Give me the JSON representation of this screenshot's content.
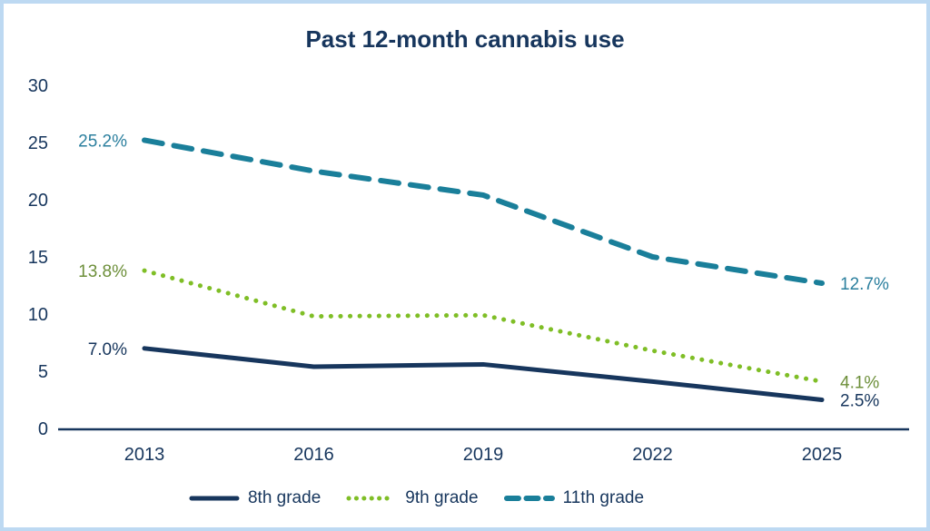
{
  "title": "Past 12-month cannabis use",
  "colors": {
    "navy": "#17365d",
    "teal": "#1a7f9a",
    "green": "#7fbe26",
    "axis": "#17365d",
    "tick_text": "#17365d",
    "border": "#bdd9f2"
  },
  "chart_data": {
    "type": "line",
    "title": "Past 12-month cannabis use",
    "x": [
      2013,
      2016,
      2019,
      2022,
      2025
    ],
    "xlabel": "",
    "ylabel": "",
    "ylim": [
      0,
      30
    ],
    "yticks": [
      0,
      5,
      10,
      15,
      20,
      25,
      30
    ],
    "grid": false,
    "legend_position": "bottom",
    "series": [
      {
        "name": "8th grade",
        "values": [
          7.0,
          5.4,
          5.6,
          4.1,
          2.5
        ],
        "style": "solid",
        "color": "#17365d",
        "label_color": "#17365d",
        "first_label": "7.0%",
        "last_label": "2.5%"
      },
      {
        "name": "9th grade",
        "values": [
          13.8,
          9.8,
          9.9,
          6.8,
          4.1
        ],
        "style": "dotted",
        "color": "#7fbe26",
        "label_color": "#6d8f3a",
        "first_label": "13.8%",
        "last_label": "4.1%"
      },
      {
        "name": "11th grade",
        "values": [
          25.2,
          22.5,
          20.4,
          15.0,
          12.7
        ],
        "style": "dashed",
        "color": "#1a7f9a",
        "label_color": "#2b7f9e",
        "first_label": "25.2%",
        "last_label": "12.7%"
      }
    ]
  }
}
